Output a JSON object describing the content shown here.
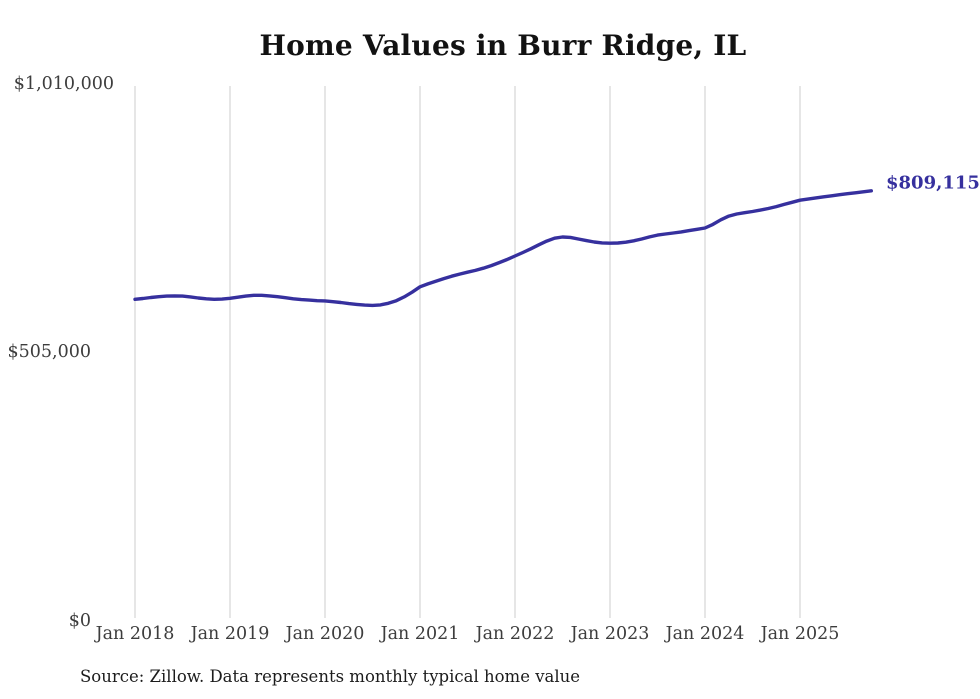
{
  "title": "Home Values in Burr Ridge, IL",
  "source_note": "Source: Zillow. Data represents monthly typical home value",
  "colors": {
    "line": "#36309e",
    "grid": "#cccccc",
    "axis_text": "#3d3d3d",
    "title_text": "#121212"
  },
  "chart_data": {
    "type": "line",
    "title": "Home Values in Burr Ridge, IL",
    "series_name": "Monthly typical home value (Zillow)",
    "x_unit": "month",
    "x_start": "Jan 2018",
    "x_end": "Oct 2025",
    "x_tick_labels": [
      "Jan 2018",
      "Jan 2019",
      "Jan 2020",
      "Jan 2021",
      "Jan 2022",
      "Jan 2023",
      "Jan 2024",
      "Jan 2025"
    ],
    "y_tick_labels": [
      "$0",
      "$505,000",
      "$1,010,000"
    ],
    "ylim": [
      0,
      1010000
    ],
    "y_tick_values": [
      0,
      505000,
      1010000
    ],
    "grid": "vertical-only",
    "legend": "none",
    "end_label": "$809,115",
    "end_value": 809115,
    "values_monthly": [
      605000,
      606500,
      608500,
      610000,
      611000,
      611500,
      611000,
      609500,
      607500,
      606000,
      605000,
      605500,
      607000,
      609000,
      611000,
      612500,
      612500,
      611500,
      610000,
      608000,
      606000,
      604500,
      603500,
      602500,
      602000,
      600500,
      599000,
      597000,
      595500,
      594200,
      593500,
      594500,
      597500,
      602500,
      609500,
      618500,
      628500,
      634000,
      639000,
      644000,
      648500,
      652500,
      656000,
      659500,
      663500,
      668500,
      674000,
      680000,
      686500,
      693000,
      700000,
      707500,
      714500,
      720000,
      722300,
      721500,
      718500,
      715500,
      712800,
      711200,
      710500,
      711000,
      712500,
      715000,
      718500,
      722500,
      725800,
      727800,
      729800,
      731800,
      734200,
      736800,
      739200,
      746000,
      754500,
      761500,
      765500,
      768000,
      770200,
      772800,
      775800,
      779500,
      783500,
      787500,
      791500,
      793600,
      795700,
      797800,
      799800,
      801800,
      803600,
      805400,
      807300,
      809115
    ]
  }
}
